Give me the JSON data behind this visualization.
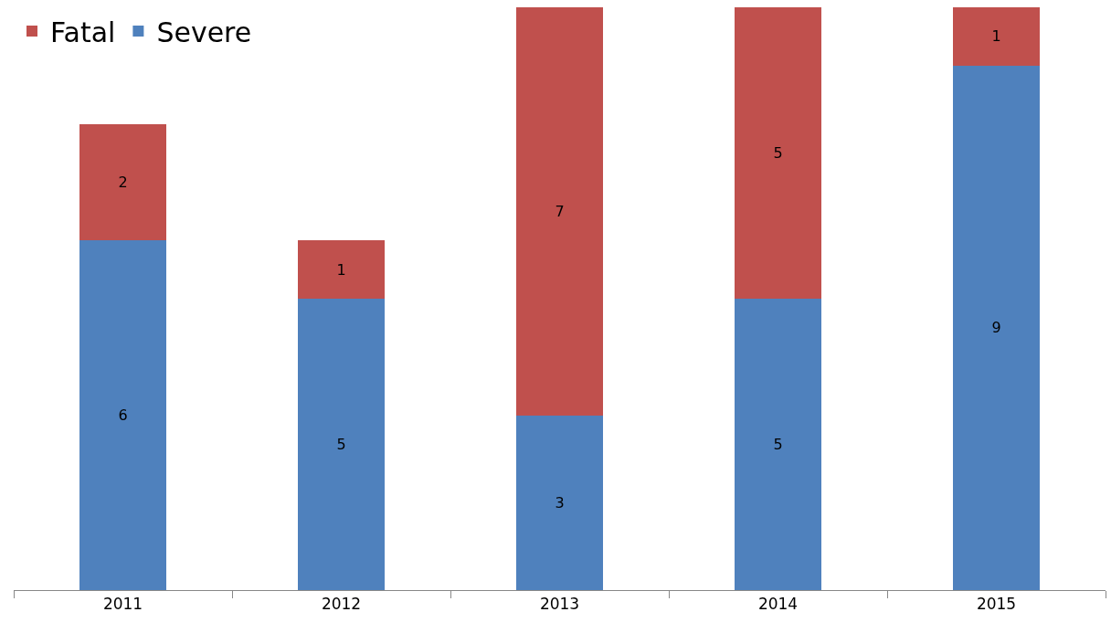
{
  "chart_data": {
    "type": "bar",
    "stacked": true,
    "categories": [
      "2011",
      "2012",
      "2013",
      "2014",
      "2015"
    ],
    "series": [
      {
        "name": "Severe",
        "color": "#4f81bd",
        "values": [
          6,
          5,
          3,
          5,
          9
        ]
      },
      {
        "name": "Fatal",
        "color": "#c0504d",
        "values": [
          2,
          1,
          7,
          5,
          1
        ]
      }
    ],
    "data_labels": true,
    "legend": "top left"
  }
}
